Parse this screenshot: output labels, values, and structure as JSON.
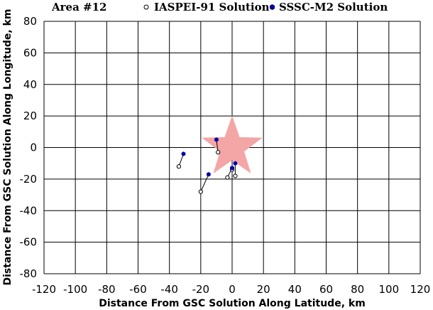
{
  "chart_data": {
    "type": "scatter",
    "title": "Area #12",
    "xlabel": "Distance From GSC Solution Along Latitude, km",
    "ylabel": "Distance From GSC Solution Along Longitude, km",
    "xlim": [
      -120,
      120
    ],
    "ylim": [
      -80,
      80
    ],
    "xticks": [
      -120,
      -100,
      -80,
      -60,
      -40,
      -20,
      0,
      20,
      40,
      60,
      80,
      100,
      120
    ],
    "yticks": [
      80,
      60,
      40,
      20,
      0,
      -20,
      -40,
      -60,
      -80
    ],
    "grid": true,
    "legend_position": "top",
    "reference_marker": {
      "shape": "star",
      "x": 0,
      "y": 0,
      "color": "#f4a6a6"
    },
    "series": [
      {
        "name": "IASPEI-91 Solution",
        "marker": "open-circle",
        "color": "#000000",
        "points": [
          [
            -34,
            -12
          ],
          [
            -20,
            -28
          ],
          [
            -9,
            -3
          ],
          [
            -3,
            -19
          ],
          [
            2,
            -18
          ],
          [
            0,
            -14
          ]
        ]
      },
      {
        "name": "SSSC-M2 Solution",
        "marker": "filled-hexagon",
        "color": "#0000a0",
        "points": [
          [
            -31,
            -4
          ],
          [
            -15,
            -17
          ],
          [
            -10,
            5
          ],
          [
            0,
            -13
          ],
          [
            2,
            -10
          ],
          [
            0,
            -13
          ]
        ]
      }
    ],
    "connectors": "each IASPEI-91 point joined by a line to its SSSC-M2 point"
  }
}
